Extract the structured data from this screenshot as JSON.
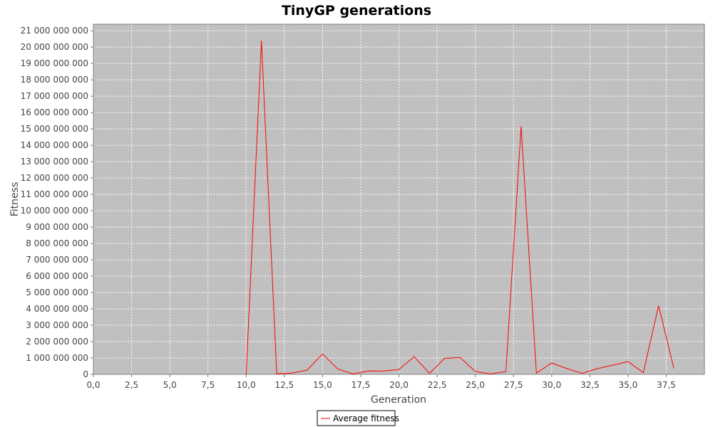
{
  "chart_data": {
    "type": "line",
    "title": "TinyGP generations",
    "xlabel": "Generation",
    "ylabel": "Fitness",
    "xlim": [
      0,
      40
    ],
    "ylim": [
      0,
      21400000000
    ],
    "x_ticks": [
      "0,0",
      "2,5",
      "5,0",
      "7,5",
      "10,0",
      "12,5",
      "15,0",
      "17,5",
      "20,0",
      "22,5",
      "25,0",
      "27,5",
      "30,0",
      "32,5",
      "35,0",
      "37,5"
    ],
    "y_ticks": [
      "0",
      "1 000 000 000",
      "2 000 000 000",
      "3 000 000 000",
      "4 000 000 000",
      "5 000 000 000",
      "6 000 000 000",
      "7 000 000 000",
      "8 000 000 000",
      "9 000 000 000",
      "10 000 000 000",
      "11 000 000 000",
      "12 000 000 000",
      "13 000 000 000",
      "14 000 000 000",
      "15 000 000 000",
      "16 000 000 000",
      "17 000 000 000",
      "18 000 000 000",
      "19 000 000 000",
      "20 000 000 000",
      "21 000 000 000"
    ],
    "grid": true,
    "legend_position": "bottom-center",
    "series": [
      {
        "name": "Average fitness",
        "color": "#ff0000",
        "x": [
          10,
          11,
          12,
          13,
          14,
          15,
          16,
          17,
          18,
          19,
          20,
          21,
          22,
          23,
          24,
          25,
          26,
          27,
          28,
          29,
          30,
          31,
          32,
          33,
          34,
          35,
          36,
          37,
          38
        ],
        "y": [
          0,
          20400000000,
          30000000,
          80000000,
          260000000,
          1250000000,
          320000000,
          20000000,
          210000000,
          200000000,
          290000000,
          1080000000,
          60000000,
          980000000,
          1030000000,
          180000000,
          20000000,
          170000000,
          15150000000,
          80000000,
          690000000,
          350000000,
          60000000,
          350000000,
          560000000,
          780000000,
          100000000,
          4200000000,
          360000000
        ]
      }
    ]
  },
  "colors": {
    "plot_background": "#c0c0c0",
    "gridline": "#ffffff",
    "axis": "#808080",
    "series": "#ff0000"
  }
}
